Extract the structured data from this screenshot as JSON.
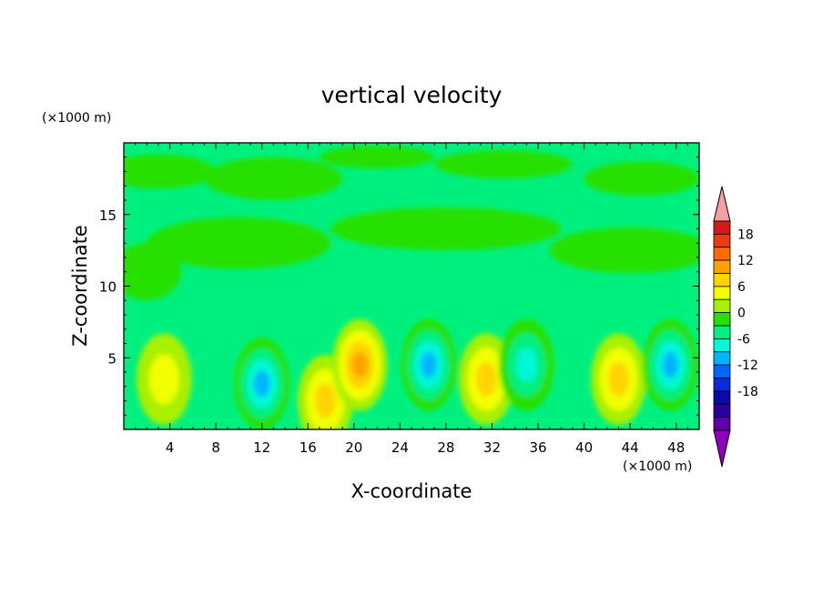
{
  "chart_data": {
    "type": "heatmap",
    "title": "vertical velocity",
    "xlabel": "X-coordinate",
    "ylabel": "Z-coordinate",
    "x_unit": "(×1000 m)",
    "y_unit": "(×1000 m)",
    "xlim": [
      0,
      50
    ],
    "ylim": [
      0,
      20
    ],
    "xticks": [
      4,
      8,
      12,
      16,
      20,
      24,
      28,
      32,
      36,
      40,
      44,
      48
    ],
    "yticks": [
      5,
      10,
      15
    ],
    "colorbar": {
      "ticks": [
        18,
        12,
        6,
        0,
        -6,
        -12,
        -18
      ],
      "levels": [
        21,
        18,
        15,
        12,
        9,
        6,
        3,
        0,
        -3,
        -6,
        -9,
        -12,
        -15,
        -18,
        -21
      ],
      "colors": [
        "#f4a0a0",
        "#d81818",
        "#ee3a10",
        "#ff6a00",
        "#ffa200",
        "#ffd400",
        "#f2ff00",
        "#a8f000",
        "#28e000",
        "#00f080",
        "#00f8d8",
        "#00b4ff",
        "#0064ff",
        "#0a2ae0",
        "#0a0aa8",
        "#2a00a0",
        "#5e00a8",
        "#9000b8"
      ]
    },
    "features": [
      {
        "x": 3.5,
        "z": 3.5,
        "w": 3.6
      },
      {
        "x": 12.0,
        "z": 3.2,
        "w": -10
      },
      {
        "x": 17.5,
        "z": 2.0,
        "w": 6
      },
      {
        "x": 20.5,
        "z": 4.5,
        "w": 9
      },
      {
        "x": 26.5,
        "z": 4.5,
        "w": -10
      },
      {
        "x": 31.5,
        "z": 3.5,
        "w": 8
      },
      {
        "x": 35.0,
        "z": 4.5,
        "w": -8
      },
      {
        "x": 43.0,
        "z": 3.5,
        "w": 7
      },
      {
        "x": 47.5,
        "z": 4.5,
        "w": -11
      }
    ]
  }
}
